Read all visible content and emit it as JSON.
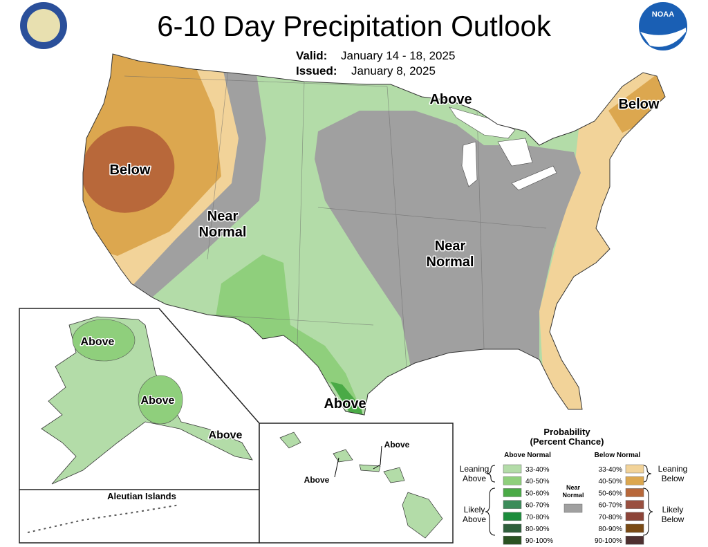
{
  "header": {
    "title": "6-10 Day Precipitation Outlook",
    "valid_label": "Valid:",
    "valid": "January 14 - 18, 2025",
    "issued_label": "Issued:",
    "issued": "January 8, 2025",
    "logo": "NOAA"
  },
  "map_labels": [
    {
      "lines": [
        "Above"
      ]
    },
    {
      "lines": [
        "Below"
      ]
    },
    {
      "lines": [
        "Below"
      ]
    },
    {
      "lines": [
        "Near",
        "Normal"
      ]
    },
    {
      "lines": [
        "Near",
        "Normal"
      ]
    },
    {
      "lines": [
        "Above"
      ]
    }
  ],
  "alaska_labels": [
    "Above",
    "Above",
    "Above"
  ],
  "aleutian_label": "Aleutian Islands",
  "hawaii_labels": [
    "Above",
    "Above"
  ],
  "legend": {
    "title": [
      "Probability",
      "(Percent Chance)"
    ],
    "above_header": "Above Normal",
    "below_header": "Below Normal",
    "near": [
      "Near",
      "Normal"
    ],
    "near_color": "#a0a0a0",
    "leaning_above": [
      "Leaning",
      "Above"
    ],
    "likely_above": [
      "Likely",
      "Above"
    ],
    "leaning_below": [
      "Leaning",
      "Below"
    ],
    "likely_below": [
      "Likely",
      "Below"
    ],
    "above": [
      {
        "label": "33-40%",
        "color": "#b3dca8"
      },
      {
        "label": "40-50%",
        "color": "#8fcf7c"
      },
      {
        "label": "50-60%",
        "color": "#4aaa46"
      },
      {
        "label": "60-70%",
        "color": "#3c8c5a"
      },
      {
        "label": "70-80%",
        "color": "#1c8c3c"
      },
      {
        "label": "80-90%",
        "color": "#2f5f3c"
      },
      {
        "label": "90-100%",
        "color": "#2a5222"
      }
    ],
    "below": [
      {
        "label": "33-40%",
        "color": "#f2d399"
      },
      {
        "label": "40-50%",
        "color": "#dca74f"
      },
      {
        "label": "50-60%",
        "color": "#b8683a"
      },
      {
        "label": "60-70%",
        "color": "#9a5040"
      },
      {
        "label": "70-80%",
        "color": "#8c4438"
      },
      {
        "label": "80-90%",
        "color": "#7a4a14"
      },
      {
        "label": "90-100%",
        "color": "#4e3030"
      }
    ]
  }
}
